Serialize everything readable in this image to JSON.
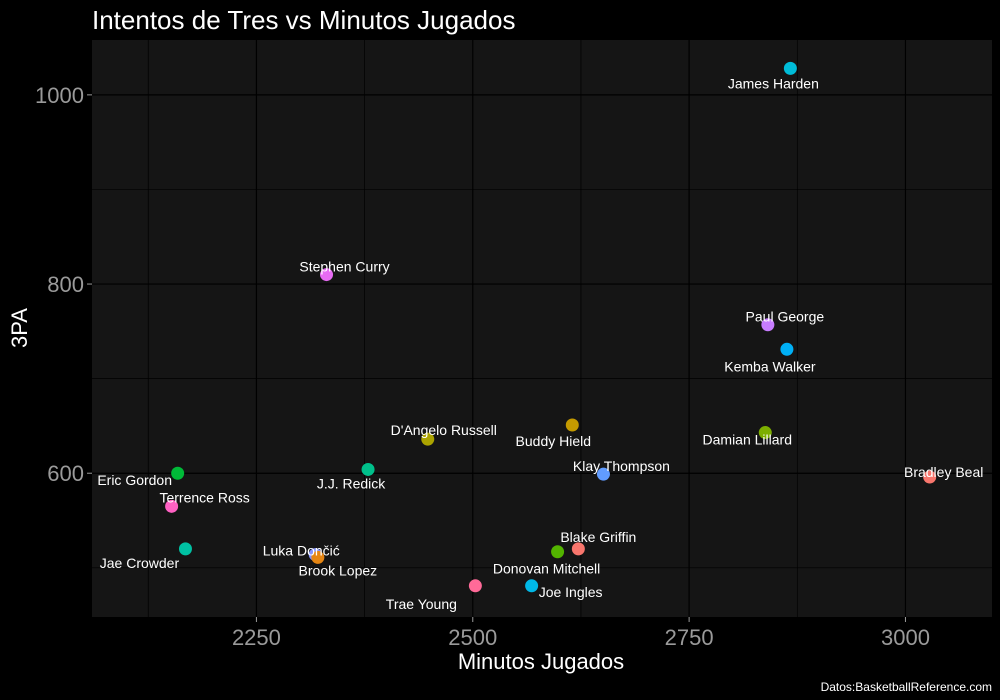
{
  "chart_data": {
    "type": "scatter",
    "title": "Intentos de Tres vs Minutos Jugados",
    "xlabel": "Minutos Jugados",
    "ylabel": "3PA",
    "caption": "Datos:BasketballReference.com",
    "xlim": [
      2060,
      3100
    ],
    "ylim": [
      448,
      1058
    ],
    "x_ticks": [
      2250,
      2500,
      2750,
      3000
    ],
    "y_ticks": [
      600,
      800,
      1000
    ],
    "grid": true,
    "background": "#151515",
    "points": [
      {
        "name": "James Harden",
        "x": 2867,
        "y": 1028,
        "color": "#00BCD8"
      },
      {
        "name": "Stephen Curry",
        "x": 2331,
        "y": 810,
        "color": "#E76BF3"
      },
      {
        "name": "Paul George",
        "x": 2841,
        "y": 757,
        "color": "#C77CFF"
      },
      {
        "name": "Kemba Walker",
        "x": 2863,
        "y": 731,
        "color": "#00B0F6"
      },
      {
        "name": "Buddy Hield",
        "x": 2615,
        "y": 651,
        "color": "#C49A00"
      },
      {
        "name": "D'Angelo Russell",
        "x": 2448,
        "y": 636,
        "color": "#ABA300"
      },
      {
        "name": "Damian Lillard",
        "x": 2838,
        "y": 643,
        "color": "#7CAE00"
      },
      {
        "name": "J.J. Redick",
        "x": 2379,
        "y": 604,
        "color": "#00C08B"
      },
      {
        "name": "Eric Gordon",
        "x": 2159,
        "y": 600,
        "color": "#00BA38"
      },
      {
        "name": "Klay Thompson",
        "x": 2651,
        "y": 599,
        "color": "#619CFF"
      },
      {
        "name": "Bradley Beal",
        "x": 3028,
        "y": 596,
        "color": "#F8766D"
      },
      {
        "name": "Terrence Ross",
        "x": 2152,
        "y": 565,
        "color": "#FF61C3"
      },
      {
        "name": "Jae Crowder",
        "x": 2168,
        "y": 520,
        "color": "#00C1A3"
      },
      {
        "name": "Luka Dončić",
        "x": 2318,
        "y": 514,
        "color": "#8494FF"
      },
      {
        "name": "Brook Lopez",
        "x": 2321,
        "y": 511,
        "color": "#E68613"
      },
      {
        "name": "Blake Griffin",
        "x": 2622,
        "y": 520,
        "color": "#F8766D"
      },
      {
        "name": "Donovan Mitchell",
        "x": 2598,
        "y": 517,
        "color": "#53B400"
      },
      {
        "name": "Trae Young",
        "x": 2503,
        "y": 481,
        "color": "#FF6A98"
      },
      {
        "name": "Joe Ingles",
        "x": 2568,
        "y": 481,
        "color": "#00B8E7"
      }
    ]
  }
}
